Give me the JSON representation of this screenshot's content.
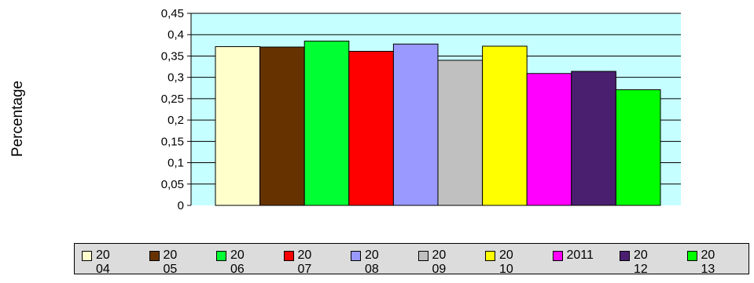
{
  "chart_data": {
    "type": "bar",
    "title": "",
    "xlabel": "",
    "ylabel": "Percentage",
    "ylim": [
      0,
      0.45
    ],
    "yticks": [
      "0",
      "0,05",
      "0,1",
      "0,15",
      "0,2",
      "0,25",
      "0,3",
      "0,35",
      "0,4",
      "0,45"
    ],
    "ytick_values": [
      0,
      0.05,
      0.1,
      0.15,
      0.2,
      0.25,
      0.3,
      0.35,
      0.4,
      0.45
    ],
    "grid": true,
    "plot_background": "#c6ffff",
    "legend_position": "bottom",
    "series": [
      {
        "name": "2004",
        "value": 0.372,
        "color": "#ffffcc"
      },
      {
        "name": "2005",
        "value": 0.371,
        "color": "#663300"
      },
      {
        "name": "2006",
        "value": 0.385,
        "color": "#00ff33"
      },
      {
        "name": "2007",
        "value": 0.361,
        "color": "#ff0000"
      },
      {
        "name": "2008",
        "value": 0.378,
        "color": "#9999ff"
      },
      {
        "name": "2009",
        "value": 0.34,
        "color": "#c0c0c0"
      },
      {
        "name": "2010",
        "value": 0.373,
        "color": "#ffff00"
      },
      {
        "name": "2011",
        "value": 0.309,
        "color": "#ff00ff"
      },
      {
        "name": "2012",
        "value": 0.314,
        "color": "#4b1f6f"
      },
      {
        "name": "2013",
        "value": 0.271,
        "color": "#00ff00"
      }
    ]
  }
}
